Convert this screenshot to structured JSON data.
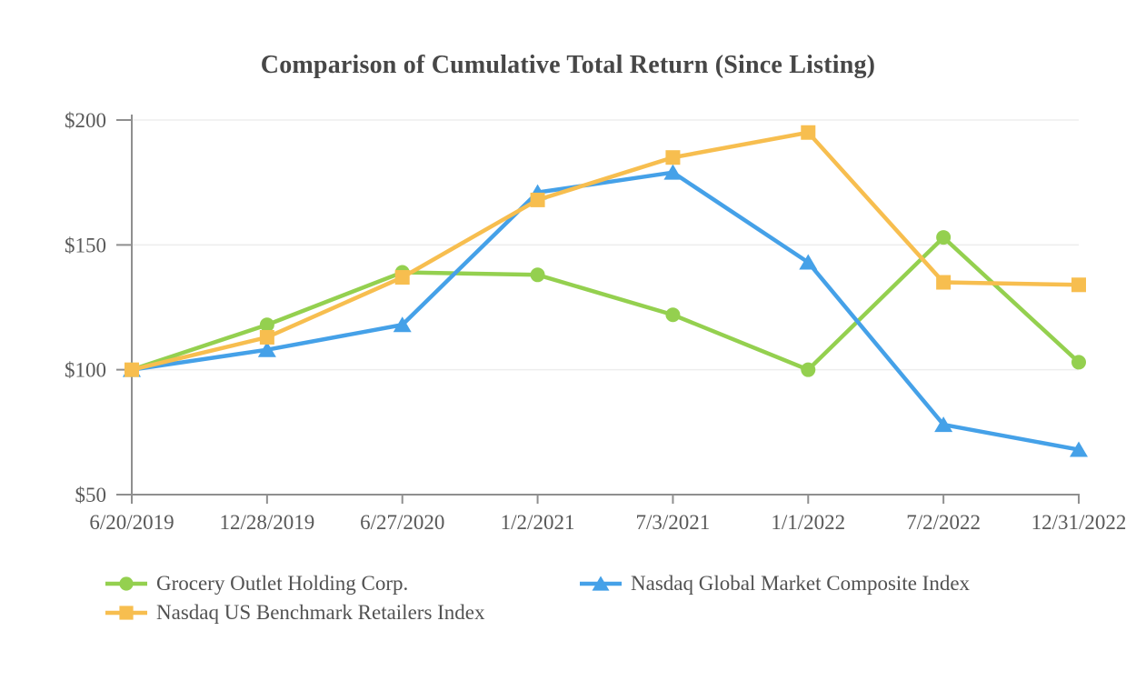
{
  "chart_data": {
    "type": "line",
    "title": "Comparison of Cumulative Total Return (Since Listing)",
    "categories": [
      "6/20/2019",
      "12/28/2019",
      "6/27/2020",
      "1/2/2021",
      "7/3/2021",
      "1/1/2022",
      "7/2/2022",
      "12/31/2022"
    ],
    "series": [
      {
        "name": "Grocery Outlet Holding Corp.",
        "marker": "circle",
        "color": "#94D04F",
        "values": [
          100,
          118,
          139,
          138,
          122,
          100,
          153,
          103
        ]
      },
      {
        "name": "Nasdaq Global Market Composite Index",
        "marker": "triangle",
        "color": "#45A1E8",
        "values": [
          100,
          108,
          118,
          171,
          179,
          143,
          78,
          68
        ]
      },
      {
        "name": "Nasdaq US Benchmark Retailers Index",
        "marker": "square",
        "color": "#F7BE4F",
        "values": [
          100,
          113,
          137,
          168,
          185,
          195,
          135,
          134
        ]
      }
    ],
    "ylim": [
      50,
      200
    ],
    "yticks": [
      {
        "value": 50,
        "label": "$50"
      },
      {
        "value": 100,
        "label": "$100"
      },
      {
        "value": 150,
        "label": "$150"
      },
      {
        "value": 200,
        "label": "$200"
      }
    ],
    "grid": true,
    "legend_position": "bottom",
    "colors": {
      "axis": "#8F8F8F",
      "gridline": "#EDEDED",
      "tick_text": "#595959",
      "title_text": "#474747"
    }
  }
}
